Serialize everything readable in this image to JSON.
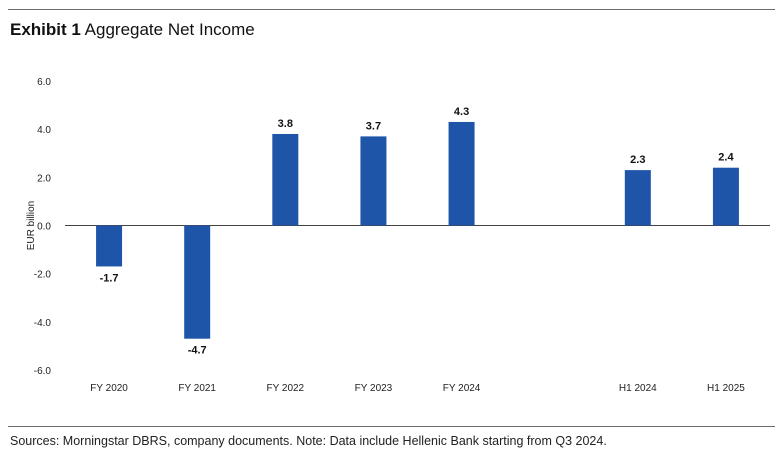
{
  "header": {
    "title_bold": "Exhibit 1",
    "title_rest": "Aggregate Net Income"
  },
  "footnote": "Sources: Morningstar DBRS, company documents. Note: Data include Hellenic Bank starting from Q3 2024.",
  "chart_data": {
    "type": "bar",
    "title": "Aggregate Net Income",
    "xlabel": "",
    "ylabel": "EUR billion",
    "ylim": [
      -6,
      6
    ],
    "yticks": [
      6,
      4,
      2,
      0,
      -2,
      -4,
      -6
    ],
    "ytick_labels": [
      "6.0",
      "4.0",
      "2.0",
      "0.0",
      "-2.0",
      "-4.0",
      "-6.0"
    ],
    "categories": [
      "FY 2020",
      "FY 2021",
      "FY 2022",
      "FY 2023",
      "FY 2024",
      "",
      "H1 2024",
      "H1 2025"
    ],
    "values": [
      -1.7,
      -4.7,
      3.8,
      3.7,
      4.3,
      null,
      2.3,
      2.4
    ],
    "value_labels": [
      "-1.7",
      "-4.7",
      "3.8",
      "3.7",
      "4.3",
      "",
      "2.3",
      "2.4"
    ],
    "bar_color": "#1f55a8",
    "grid": false
  }
}
